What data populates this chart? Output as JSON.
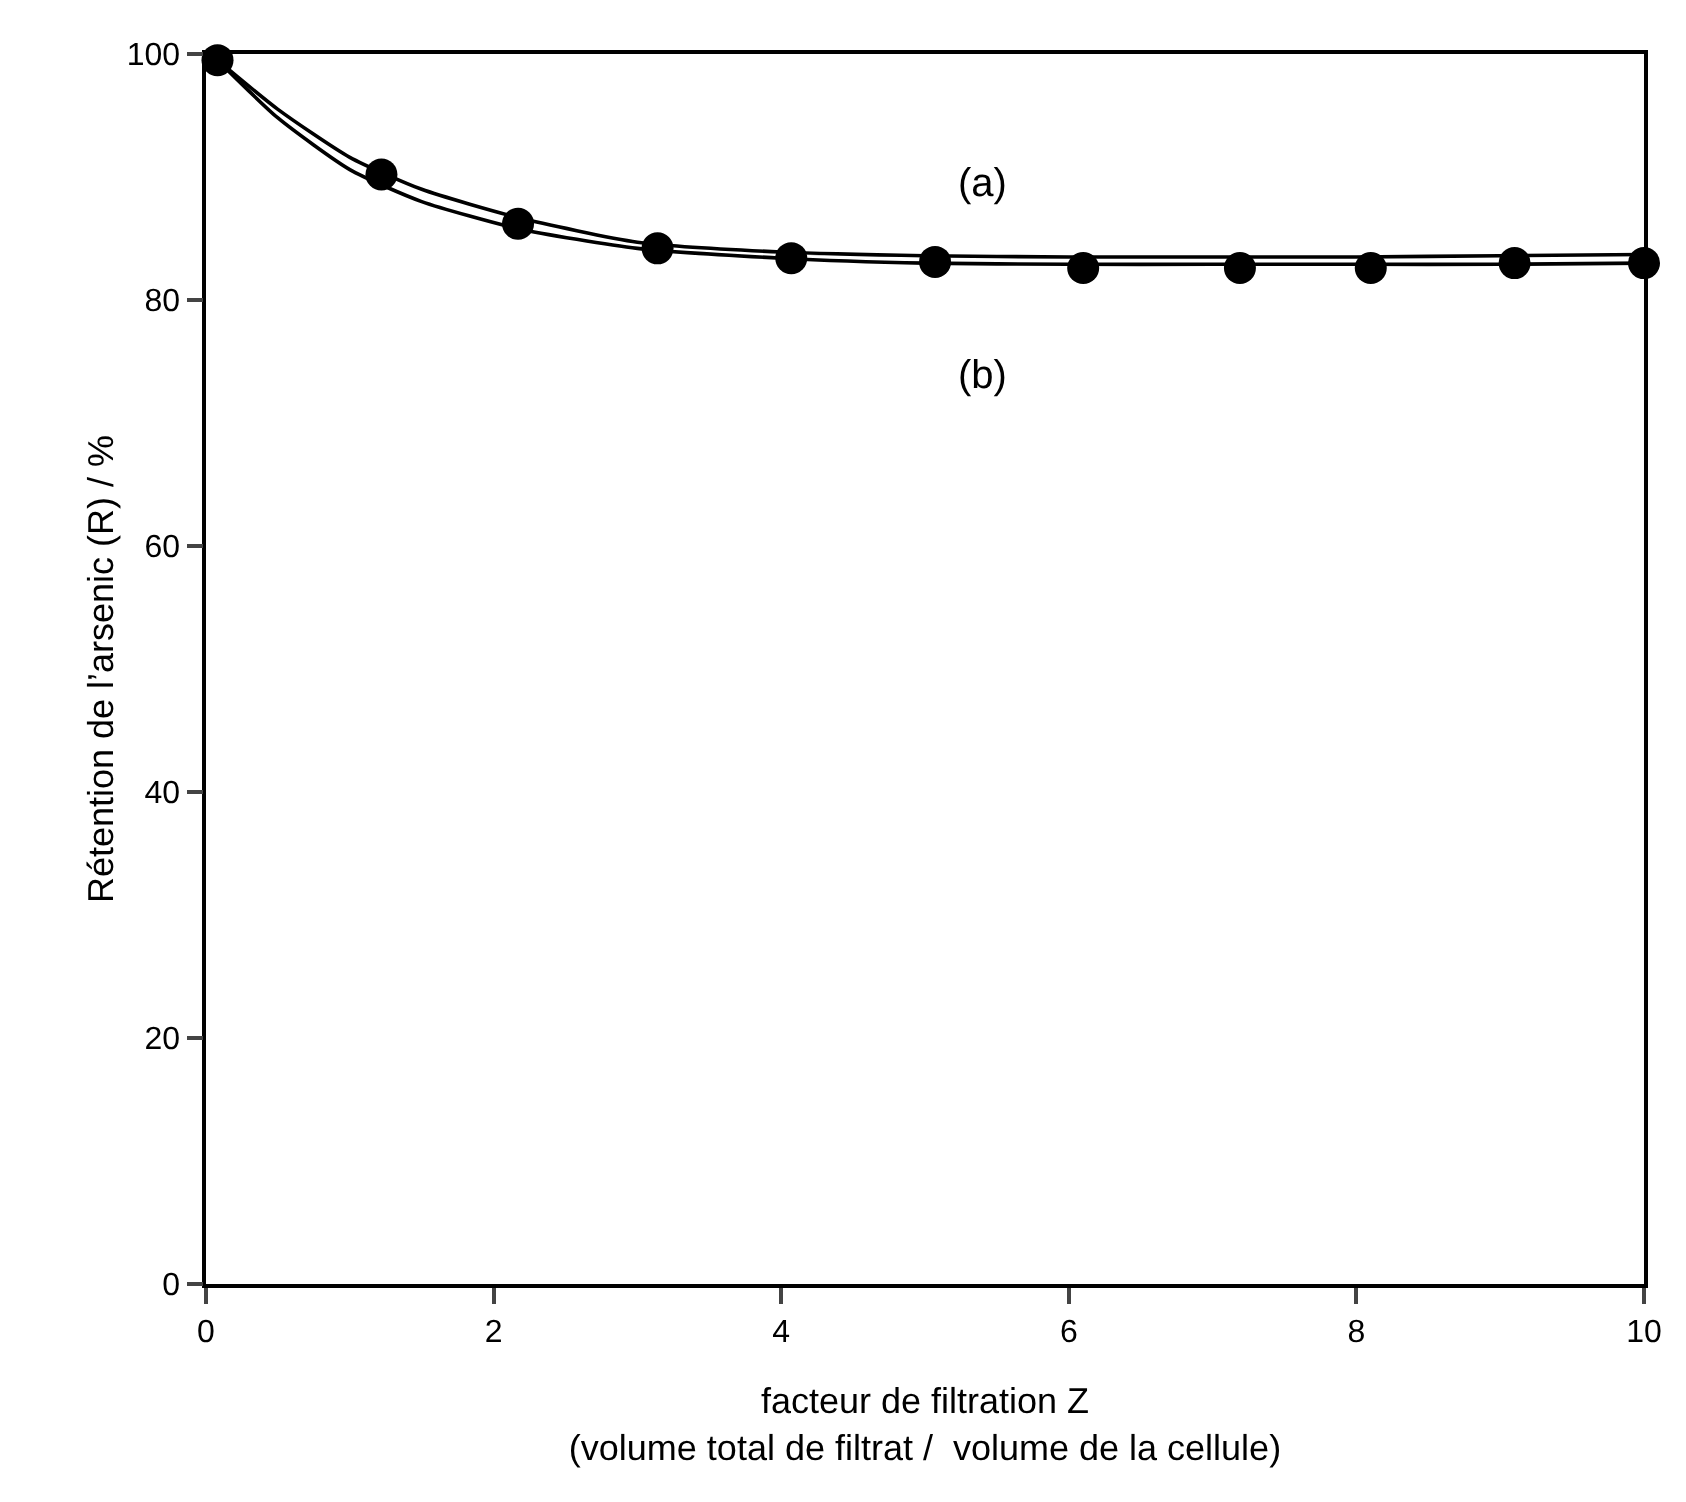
{
  "chart_data": {
    "type": "line",
    "xlabel": "facteur de filtration Z\n(volume total de filtrat /  volume de la cellule)",
    "ylabel": "Rétention de l’arsenic (R) / %",
    "xlim": [
      0,
      10
    ],
    "xticks": [
      0,
      2,
      4,
      6,
      8,
      10
    ],
    "ylim": [
      0,
      100
    ],
    "yticks": [
      0,
      20,
      40,
      60,
      80,
      100
    ],
    "grid": false,
    "annotations": [
      "(a)",
      "(b)"
    ],
    "series": [
      {
        "color": "#000000",
        "marker": "none",
        "line_style": "solid",
        "x": [
          0.08,
          0.5,
          1.0,
          1.5,
          2.17,
          3.0,
          4.0,
          5.0,
          6.0,
          7.0,
          8.0,
          9.0,
          10.0
        ],
        "values": [
          99.5,
          95.5,
          91.6,
          89.0,
          86.7,
          84.7,
          83.9,
          83.6,
          83.5,
          83.5,
          83.5,
          83.6,
          83.7
        ]
      },
      {
        "color": "#000000",
        "marker": "none",
        "line_style": "solid",
        "x": [
          0.08,
          0.5,
          1.0,
          1.5,
          2.17,
          3.0,
          4.0,
          5.0,
          6.0,
          7.0,
          8.0,
          9.0,
          10.0
        ],
        "values": [
          99.5,
          94.8,
          90.6,
          88.0,
          85.8,
          84.2,
          83.4,
          83.0,
          82.9,
          82.9,
          82.9,
          82.9,
          83.0
        ]
      },
      {
        "type": "scatter",
        "color": "#000000",
        "marker": "circle",
        "x": [
          0.08,
          1.22,
          2.17,
          3.14,
          4.07,
          5.07,
          6.1,
          7.19,
          8.1,
          9.1,
          10.0
        ],
        "values": [
          99.5,
          90.2,
          86.2,
          84.2,
          83.4,
          83.1,
          82.6,
          82.6,
          82.6,
          83.0,
          83.0
        ]
      }
    ]
  }
}
